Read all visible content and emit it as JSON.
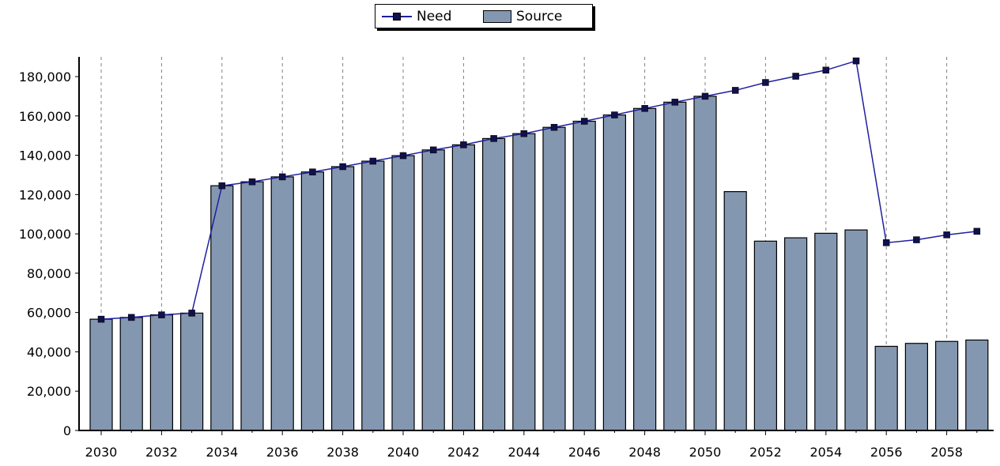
{
  "chart_data": {
    "type": "bar",
    "title": "",
    "xlabel": "",
    "ylabel": "",
    "ylim": [
      0,
      190000
    ],
    "y_ticks": [
      "0",
      "20,000",
      "40,000",
      "60,000",
      "80,000",
      "100,000",
      "120,000",
      "140,000",
      "160,000",
      "180,000"
    ],
    "x_tick_labels": [
      "2030",
      "2032",
      "2034",
      "2036",
      "2038",
      "2040",
      "2042",
      "2044",
      "2046",
      "2048",
      "2050",
      "2052",
      "2054",
      "2056",
      "2058"
    ],
    "grid": "vertical dashed at even years",
    "legend_placement": "top-center",
    "categories": [
      "2030",
      "2031",
      "2032",
      "2033",
      "2034",
      "2035",
      "2036",
      "2037",
      "2038",
      "2039",
      "2040",
      "2041",
      "2042",
      "2043",
      "2044",
      "2045",
      "2046",
      "2047",
      "2048",
      "2049",
      "2050",
      "2051",
      "2052",
      "2053",
      "2054",
      "2055",
      "2056",
      "2057",
      "2058",
      "2059"
    ],
    "series": [
      {
        "name": "Need",
        "type": "line",
        "color": "#1f1fa0",
        "marker_color": "#10104a",
        "values": [
          56600,
          57500,
          58800,
          59700,
          124500,
          126500,
          129000,
          131500,
          134200,
          137000,
          139800,
          142700,
          145300,
          148500,
          151000,
          154200,
          157300,
          160500,
          163800,
          167000,
          170000,
          173000,
          177000,
          180200,
          183300,
          188000,
          95500,
          97000,
          99500,
          101300
        ]
      },
      {
        "name": "Source",
        "type": "bar",
        "color": "#8497b0",
        "values": [
          56600,
          57500,
          58800,
          59700,
          124500,
          126500,
          129000,
          131500,
          134200,
          137000,
          139800,
          142700,
          145300,
          148500,
          151000,
          154200,
          157300,
          160500,
          163800,
          167000,
          170000,
          121500,
          96300,
          98000,
          100300,
          102000,
          42800,
          44300,
          45300,
          46000
        ]
      }
    ]
  }
}
